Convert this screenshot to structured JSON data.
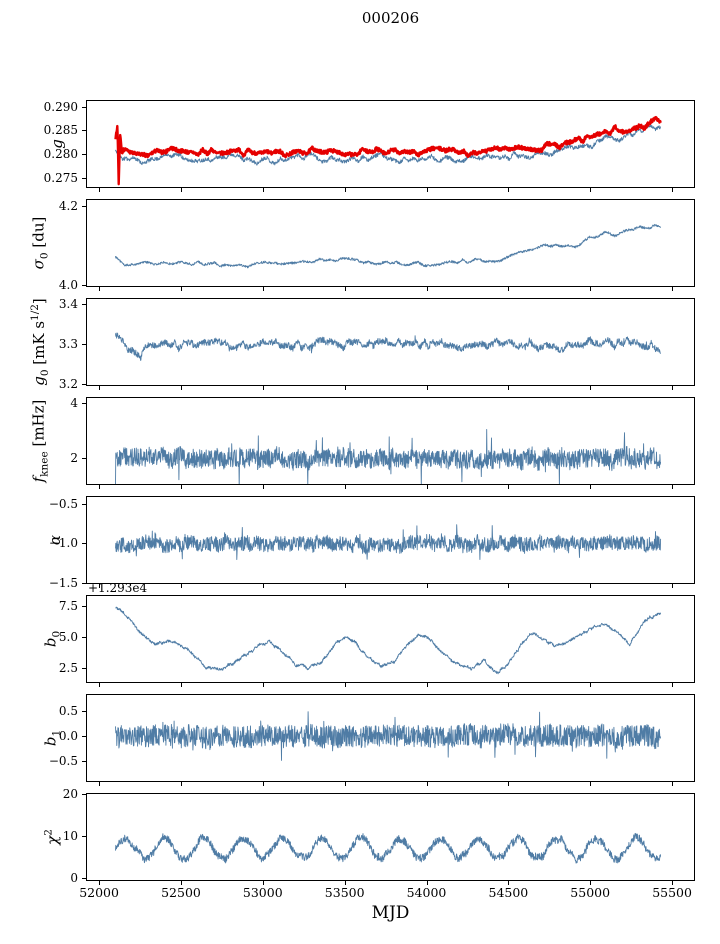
{
  "figure": {
    "title": "000206",
    "xlabel": "MJD",
    "x_range": [
      51920,
      55640
    ],
    "x_ticks": [
      52000,
      52500,
      53000,
      53500,
      54000,
      54500,
      55000,
      55500
    ],
    "x_tick_labels": [
      "52000",
      "52500",
      "53000",
      "53500",
      "54000",
      "54500",
      "55000",
      "55500"
    ],
    "line_color": "#4f7ca5",
    "highlight_color": "#e50000"
  },
  "chart_data": [
    {
      "type": "line",
      "ylabel": "*g*",
      "ylim": [
        0.2729,
        0.2915
      ],
      "yticks": [
        0.275,
        0.28,
        0.285,
        0.29
      ],
      "ytick_labels": [
        "0.275",
        "0.280",
        "0.285",
        "0.290"
      ],
      "series": [
        {
          "name": "g-fit",
          "color": "#4f7ca5",
          "lw": 0.9,
          "seed": 11,
          "n": 1500,
          "x_start": 52100,
          "x_end": 55430,
          "noise_white": 0.0004,
          "noise_smooth": [
            0.0008,
            120
          ],
          "keypoints": [
            [
              52100,
              0.2808
            ],
            [
              52140,
              0.279
            ],
            [
              52200,
              0.2788
            ],
            [
              52300,
              0.2786
            ],
            [
              52400,
              0.2796
            ],
            [
              52500,
              0.2797
            ],
            [
              52600,
              0.2788
            ],
            [
              52700,
              0.2792
            ],
            [
              52800,
              0.2795
            ],
            [
              52900,
              0.279
            ],
            [
              53000,
              0.2786
            ],
            [
              53100,
              0.2787
            ],
            [
              53200,
              0.2794
            ],
            [
              53300,
              0.2796
            ],
            [
              53400,
              0.279
            ],
            [
              53500,
              0.2787
            ],
            [
              53600,
              0.2793
            ],
            [
              53700,
              0.2796
            ],
            [
              53800,
              0.279
            ],
            [
              53900,
              0.2787
            ],
            [
              54000,
              0.2792
            ],
            [
              54100,
              0.2793
            ],
            [
              54200,
              0.2788
            ],
            [
              54300,
              0.279
            ],
            [
              54400,
              0.2794
            ],
            [
              54500,
              0.2797
            ],
            [
              54600,
              0.2799
            ],
            [
              54700,
              0.2801
            ],
            [
              54800,
              0.2806
            ],
            [
              54900,
              0.2812
            ],
            [
              55000,
              0.282
            ],
            [
              55100,
              0.2831
            ],
            [
              55150,
              0.2838
            ],
            [
              55200,
              0.2833
            ],
            [
              55250,
              0.284
            ],
            [
              55300,
              0.2848
            ],
            [
              55350,
              0.2856
            ],
            [
              55430,
              0.2862
            ]
          ]
        },
        {
          "name": "g-highlight",
          "color": "#e50000",
          "lw": 2.4,
          "seed": 7,
          "n": 1500,
          "x_start": 52100,
          "x_end": 55430,
          "noise_white": 0.0004,
          "noise_smooth": [
            0.0007,
            120
          ],
          "keypoints": [
            [
              52100,
              0.2838
            ],
            [
              52112,
              0.2868
            ],
            [
              52120,
              0.2743
            ],
            [
              52128,
              0.2852
            ],
            [
              52140,
              0.2806
            ],
            [
              52200,
              0.2802
            ],
            [
              52300,
              0.28
            ],
            [
              52400,
              0.281
            ],
            [
              52500,
              0.2811
            ],
            [
              52600,
              0.2802
            ],
            [
              52700,
              0.2806
            ],
            [
              52800,
              0.2809
            ],
            [
              52900,
              0.2804
            ],
            [
              53000,
              0.28
            ],
            [
              53100,
              0.2801
            ],
            [
              53200,
              0.2808
            ],
            [
              53300,
              0.281
            ],
            [
              53400,
              0.2804
            ],
            [
              53500,
              0.2801
            ],
            [
              53600,
              0.2807
            ],
            [
              53700,
              0.281
            ],
            [
              53800,
              0.2804
            ],
            [
              53900,
              0.2801
            ],
            [
              54000,
              0.2806
            ],
            [
              54100,
              0.2807
            ],
            [
              54200,
              0.2802
            ],
            [
              54300,
              0.2804
            ],
            [
              54400,
              0.2808
            ],
            [
              54500,
              0.2811
            ],
            [
              54600,
              0.2813
            ],
            [
              54700,
              0.2815
            ],
            [
              54800,
              0.282
            ],
            [
              54900,
              0.2826
            ],
            [
              55000,
              0.2834
            ],
            [
              55100,
              0.2845
            ],
            [
              55150,
              0.2852
            ],
            [
              55200,
              0.2847
            ],
            [
              55250,
              0.2854
            ],
            [
              55300,
              0.2862
            ],
            [
              55330,
              0.285
            ],
            [
              55370,
              0.2866
            ],
            [
              55400,
              0.2876
            ],
            [
              55430,
              0.2862
            ]
          ]
        }
      ]
    },
    {
      "type": "line",
      "ylabel": "*σ*_0_ [du]",
      "ylim": [
        3.997,
        4.22
      ],
      "yticks": [
        4.0,
        4.2
      ],
      "ytick_labels": [
        "4.0",
        "4.2"
      ],
      "series": [
        {
          "name": "sigma0",
          "color": "#4f7ca5",
          "lw": 0.9,
          "seed": 21,
          "n": 1500,
          "x_start": 52100,
          "x_end": 55430,
          "noise_white": 0.003,
          "noise_smooth": [
            0.006,
            100
          ],
          "keypoints": [
            [
              52100,
              4.075
            ],
            [
              52150,
              4.055
            ],
            [
              52300,
              4.055
            ],
            [
              52500,
              4.06
            ],
            [
              52700,
              4.055
            ],
            [
              52900,
              4.052
            ],
            [
              53100,
              4.058
            ],
            [
              53300,
              4.062
            ],
            [
              53500,
              4.065
            ],
            [
              53700,
              4.06
            ],
            [
              53900,
              4.055
            ],
            [
              54100,
              4.058
            ],
            [
              54300,
              4.062
            ],
            [
              54500,
              4.07
            ],
            [
              54600,
              4.09
            ],
            [
              54700,
              4.1
            ],
            [
              54800,
              4.105
            ],
            [
              54900,
              4.1
            ],
            [
              55000,
              4.12
            ],
            [
              55100,
              4.135
            ],
            [
              55150,
              4.13
            ],
            [
              55250,
              4.14
            ],
            [
              55350,
              4.15
            ],
            [
              55430,
              4.155
            ]
          ]
        }
      ]
    },
    {
      "type": "line",
      "ylabel": "*g*_0_ [mK s^1/2^]",
      "ylim": [
        3.195,
        3.415
      ],
      "yticks": [
        3.2,
        3.3,
        3.4
      ],
      "ytick_labels": [
        "3.2",
        "3.3",
        "3.4"
      ],
      "series": [
        {
          "name": "g0",
          "color": "#4f7ca5",
          "lw": 0.9,
          "seed": 31,
          "n": 1500,
          "x_start": 52100,
          "x_end": 55430,
          "noise_white": 0.008,
          "noise_smooth": [
            0.012,
            130
          ],
          "spike_p": 0.01,
          "spike_mult": 2.0,
          "keypoints": [
            [
              52100,
              3.32
            ],
            [
              52150,
              3.3
            ],
            [
              52250,
              3.275
            ],
            [
              52300,
              3.29
            ],
            [
              52400,
              3.3
            ],
            [
              52600,
              3.295
            ],
            [
              52800,
              3.3
            ],
            [
              53000,
              3.295
            ],
            [
              53200,
              3.3
            ],
            [
              53400,
              3.3
            ],
            [
              53600,
              3.295
            ],
            [
              53800,
              3.3
            ],
            [
              54000,
              3.3
            ],
            [
              54200,
              3.295
            ],
            [
              54400,
              3.3
            ],
            [
              54600,
              3.3
            ],
            [
              54800,
              3.295
            ],
            [
              55000,
              3.3
            ],
            [
              55200,
              3.305
            ],
            [
              55430,
              3.295
            ]
          ]
        }
      ]
    },
    {
      "type": "line",
      "ylabel": "*f*_knee_ [mHz]",
      "ylim": [
        1.05,
        4.25
      ],
      "yticks": [
        2,
        4
      ],
      "ytick_labels": [
        "2",
        "4"
      ],
      "series": [
        {
          "name": "fknee",
          "color": "#4f7ca5",
          "lw": 0.9,
          "seed": 41,
          "n": 1600,
          "x_start": 52100,
          "x_end": 55430,
          "noise_white": 0.35,
          "noise_smooth": [
            0.12,
            150
          ],
          "spike_p": 0.02,
          "spike_mult": 3.2,
          "keypoints": [
            [
              52100,
              2.05
            ],
            [
              53500,
              2.0
            ],
            [
              55430,
              2.0
            ]
          ]
        }
      ]
    },
    {
      "type": "line",
      "ylabel": "*α*",
      "ylim": [
        -1.505,
        -0.4
      ],
      "yticks": [
        -1.5,
        -1.0,
        -0.5
      ],
      "ytick_labels": [
        "−1.5",
        "−1.0",
        "−0.5"
      ],
      "series": [
        {
          "name": "alpha",
          "color": "#4f7ca5",
          "lw": 0.9,
          "seed": 51,
          "n": 1600,
          "x_start": 52100,
          "x_end": 55430,
          "noise_white": 0.09,
          "noise_smooth": [
            0.04,
            150
          ],
          "spike_p": 0.015,
          "spike_mult": 2.5,
          "keypoints": [
            [
              52100,
              -1.0
            ],
            [
              55430,
              -1.0
            ]
          ]
        }
      ]
    },
    {
      "type": "line",
      "ylabel": "*b*_0_",
      "offset_text": "+1.293e4",
      "ylim": [
        1.29,
        8.39
      ],
      "yticks": [
        2.5,
        5.0,
        7.5
      ],
      "ytick_labels": [
        "2.5",
        "5.0",
        "7.5"
      ],
      "series": [
        {
          "name": "b0",
          "color": "#4f7ca5",
          "lw": 0.9,
          "seed": 61,
          "n": 1500,
          "x_start": 52100,
          "x_end": 55430,
          "noise_white": 0.1,
          "noise_smooth": [
            0.12,
            200
          ],
          "keypoints": [
            [
              52100,
              7.4
            ],
            [
              52180,
              6.6
            ],
            [
              52260,
              5.2
            ],
            [
              52340,
              4.4
            ],
            [
              52420,
              4.6
            ],
            [
              52500,
              4.4
            ],
            [
              52580,
              3.5
            ],
            [
              52660,
              2.5
            ],
            [
              52740,
              2.4
            ],
            [
              52820,
              2.9
            ],
            [
              52900,
              3.6
            ],
            [
              52980,
              4.3
            ],
            [
              53040,
              4.6
            ],
            [
              53120,
              3.8
            ],
            [
              53200,
              2.8
            ],
            [
              53280,
              2.5
            ],
            [
              53360,
              3.0
            ],
            [
              53440,
              4.4
            ],
            [
              53500,
              5.0
            ],
            [
              53560,
              4.6
            ],
            [
              53640,
              3.4
            ],
            [
              53720,
              2.7
            ],
            [
              53800,
              3.0
            ],
            [
              53880,
              4.4
            ],
            [
              53950,
              5.2
            ],
            [
              54030,
              4.7
            ],
            [
              54110,
              3.6
            ],
            [
              54190,
              2.8
            ],
            [
              54270,
              2.4
            ],
            [
              54350,
              3.1
            ],
            [
              54430,
              2.1
            ],
            [
              54500,
              2.8
            ],
            [
              54570,
              4.2
            ],
            [
              54640,
              5.3
            ],
            [
              54700,
              4.9
            ],
            [
              54780,
              4.3
            ],
            [
              54860,
              4.5
            ],
            [
              54940,
              5.2
            ],
            [
              55020,
              5.8
            ],
            [
              55100,
              6.0
            ],
            [
              55160,
              5.4
            ],
            [
              55240,
              4.4
            ],
            [
              55290,
              5.4
            ],
            [
              55340,
              6.4
            ],
            [
              55430,
              6.9
            ]
          ]
        }
      ]
    },
    {
      "type": "line",
      "ylabel": "*b*_1_",
      "ylim": [
        -0.92,
        0.84
      ],
      "yticks": [
        -0.5,
        0.0,
        0.5
      ],
      "ytick_labels": [
        "−0.5",
        "0.0",
        "0.5"
      ],
      "series": [
        {
          "name": "b1",
          "color": "#4f7ca5",
          "lw": 0.9,
          "seed": 71,
          "n": 1600,
          "x_start": 52100,
          "x_end": 55430,
          "noise_white": 0.22,
          "noise_smooth": [
            0.04,
            150
          ],
          "spike_p": 0.02,
          "spike_mult": 2.2,
          "keypoints": [
            [
              52100,
              0.0
            ],
            [
              55430,
              0.0
            ]
          ]
        }
      ]
    },
    {
      "type": "line",
      "ylabel": "*χ*^2^",
      "ylim": [
        -0.5,
        20.3
      ],
      "yticks": [
        0,
        10,
        20
      ],
      "ytick_labels": [
        "0",
        "10",
        "20"
      ],
      "series": [
        {
          "name": "chi2",
          "color": "#4f7ca5",
          "lw": 0.9,
          "seed": 81,
          "n": 1600,
          "x_start": 52100,
          "x_end": 55430,
          "noise_white": 0.9,
          "noise_smooth": [
            0.5,
            150
          ],
          "osc": [
            2.3,
            240
          ],
          "keypoints": [
            [
              52100,
              7.2
            ],
            [
              55430,
              7.2
            ]
          ]
        }
      ]
    }
  ]
}
